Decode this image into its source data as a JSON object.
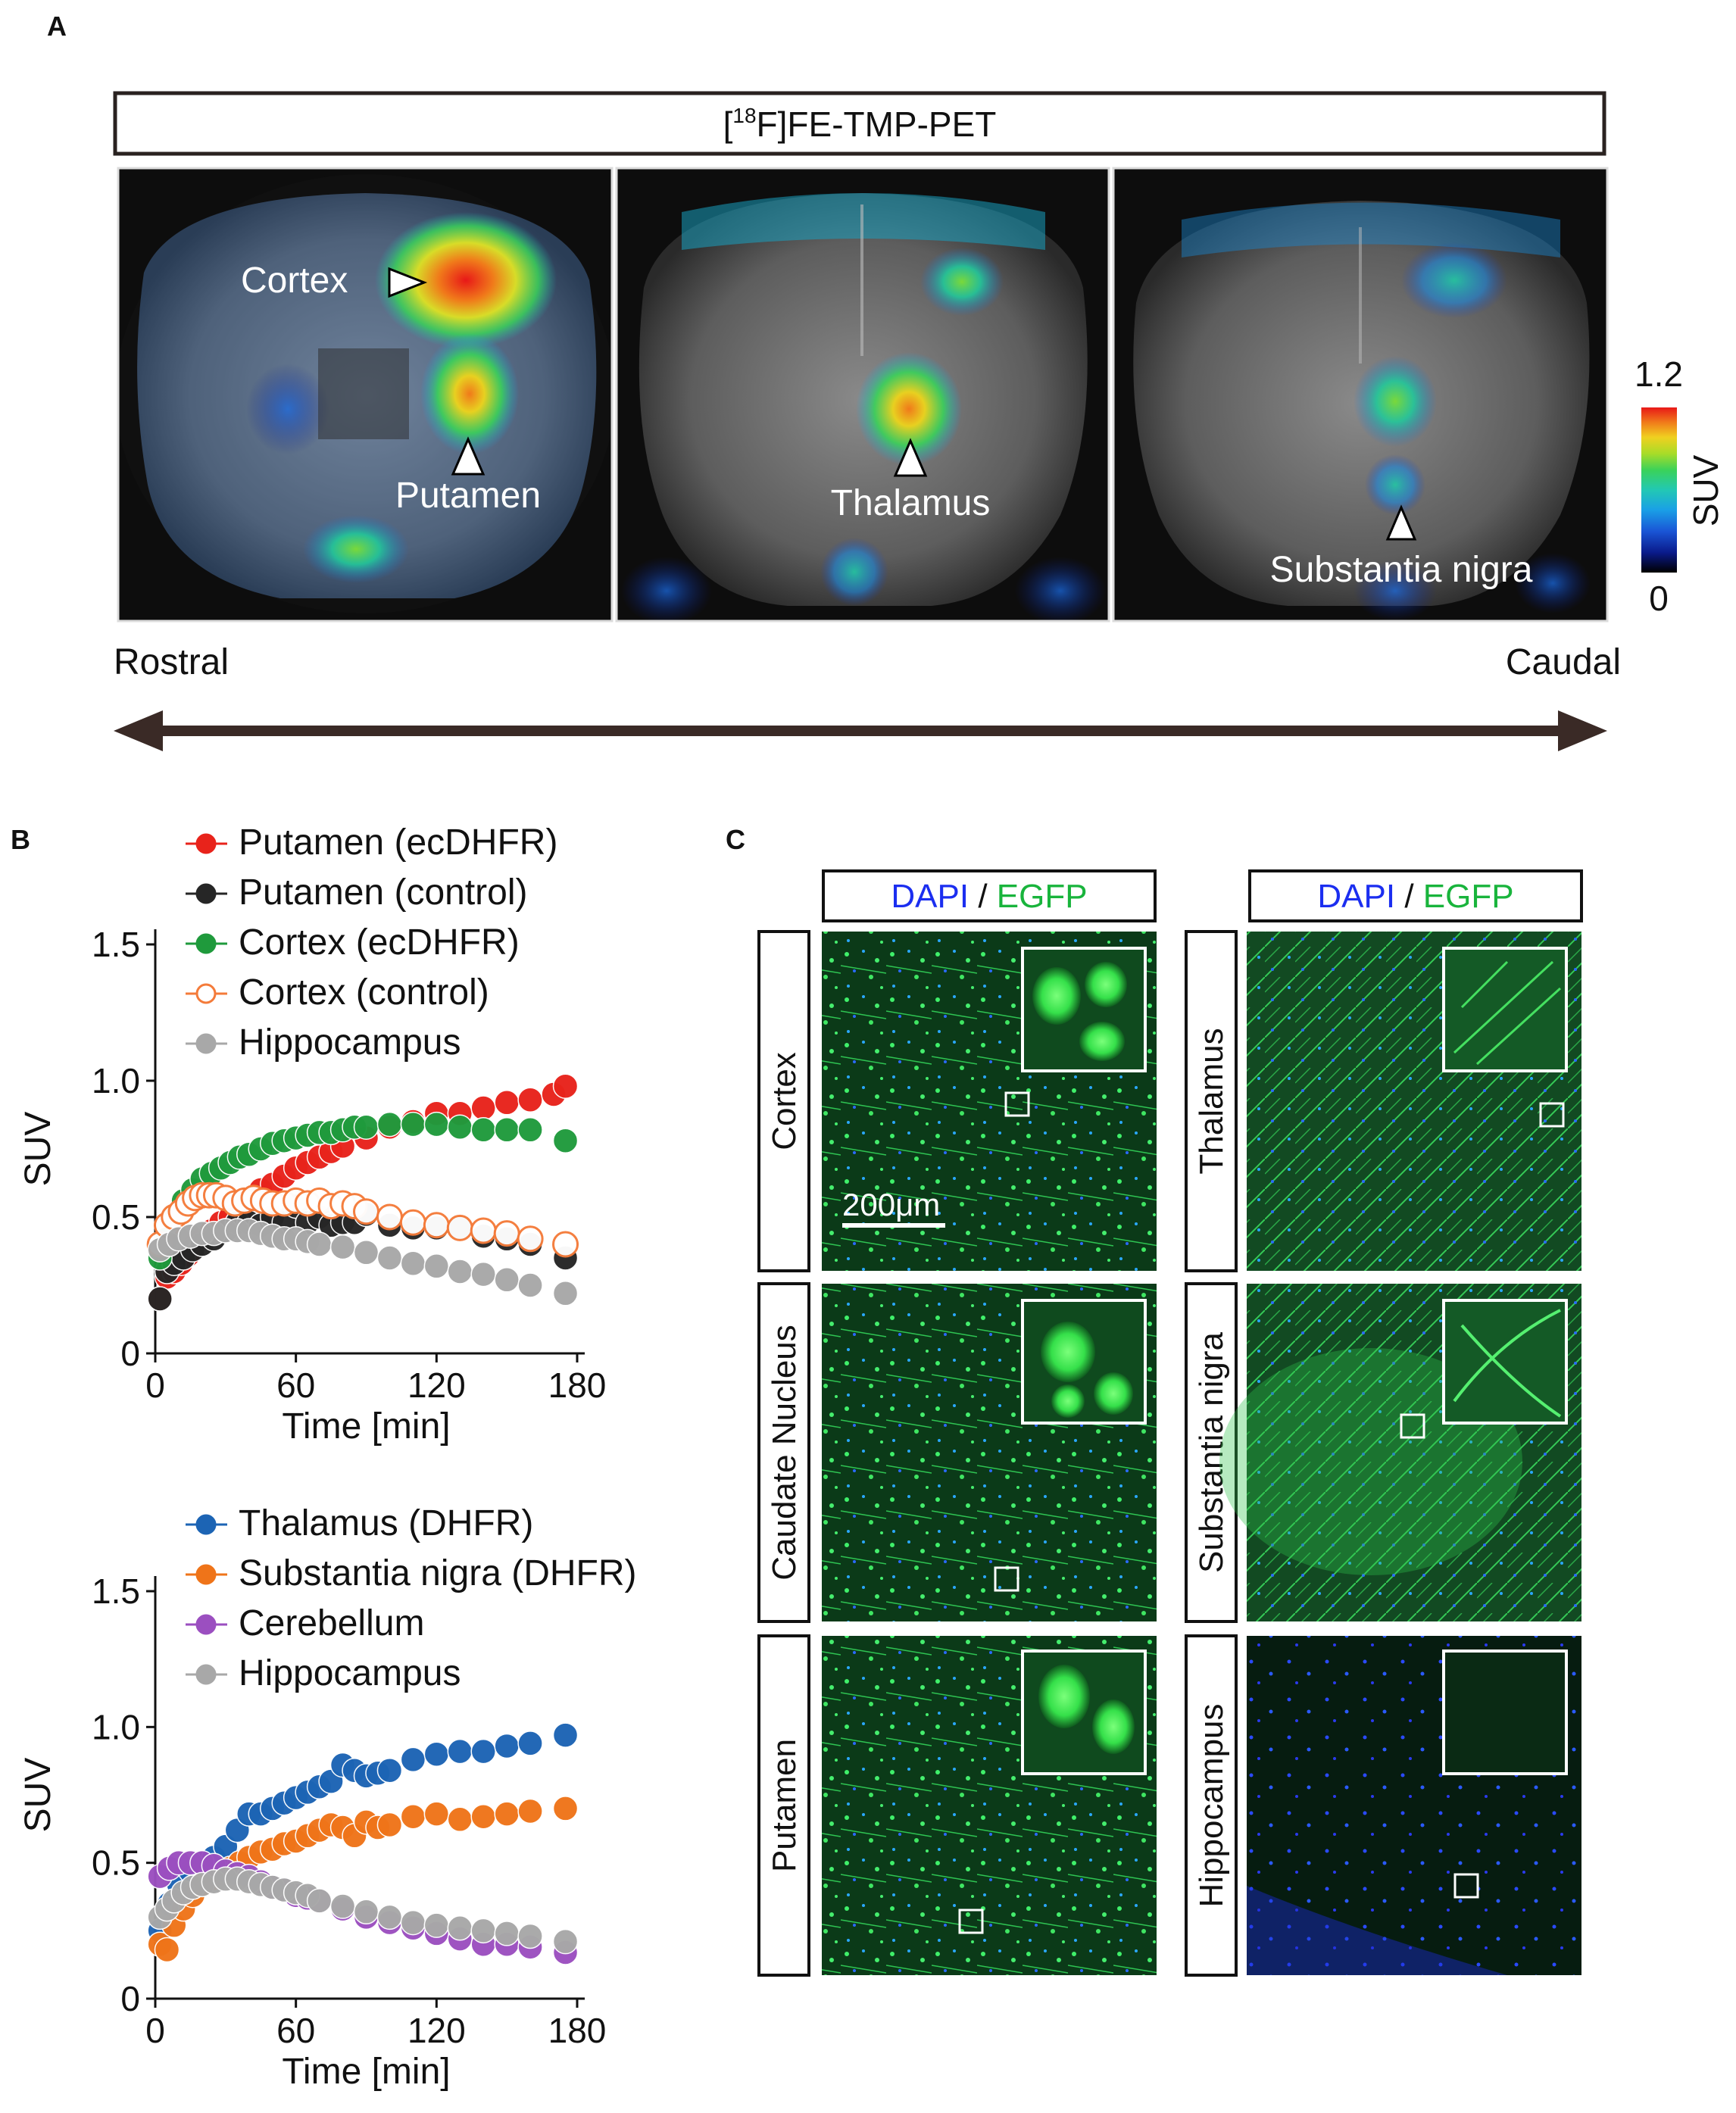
{
  "panelA": {
    "letter": "A",
    "banner_prefix": "[",
    "banner_isotope": "18",
    "banner_suffix": "F]FE-TMP-PET",
    "labels": {
      "cortex": "Cortex",
      "putamen": "Putamen",
      "thalamus": "Thalamus",
      "substantia_nigra": "Substantia nigra"
    },
    "colorbar": {
      "max": "1.2",
      "min": "0",
      "label": "SUV",
      "colors": [
        "#000000",
        "#0a1a8a",
        "#1a55d6",
        "#1aa0e6",
        "#22c8b4",
        "#3ad25a",
        "#a8dc28",
        "#f0d020",
        "#f07a1a",
        "#e81818"
      ]
    },
    "rostral": "Rostral",
    "caudal": "Caudal",
    "colors": {
      "arrow": "#3a2a26",
      "frame": "#1a1a1a"
    }
  },
  "panelB": {
    "letter": "B",
    "charts": [
      "chart_data.0",
      "chart_data.1"
    ]
  },
  "panelC": {
    "letter": "C",
    "header_dapi": "DAPI",
    "header_slash": " / ",
    "header_egfp": "EGFP",
    "left_regions": [
      "Cortex",
      "Caudate Nucleus",
      "Putamen"
    ],
    "right_regions": [
      "Thalamus",
      "Substantia nigra",
      "Hippocampus"
    ],
    "scale_bar": "200μm",
    "colors": {
      "dapi": "#1b2ef0",
      "egfp": "#19b43c"
    }
  },
  "chart_data": [
    {
      "type": "scatter",
      "title": "",
      "xlabel": "Time [min]",
      "ylabel": "SUV",
      "xlim": [
        0,
        180
      ],
      "ylim": [
        0,
        1.5
      ],
      "xticks": [
        "0",
        "60",
        "120",
        "180"
      ],
      "yticks": [
        "0",
        "0.5",
        "1.0",
        "1.5"
      ],
      "legend_position": "top",
      "series": [
        {
          "name": "Putamen (ecDHFR)",
          "color": "#e8231b",
          "fill": "filled",
          "x": [
            2,
            5,
            8,
            11,
            14,
            17,
            20,
            24,
            28,
            32,
            36,
            40,
            45,
            50,
            55,
            60,
            65,
            70,
            75,
            80,
            90,
            100,
            110,
            120,
            130,
            140,
            150,
            160,
            170,
            175
          ],
          "y": [
            0.2,
            0.28,
            0.3,
            0.33,
            0.36,
            0.4,
            0.42,
            0.45,
            0.48,
            0.5,
            0.52,
            0.56,
            0.6,
            0.62,
            0.65,
            0.68,
            0.7,
            0.72,
            0.74,
            0.76,
            0.79,
            0.83,
            0.85,
            0.88,
            0.88,
            0.9,
            0.92,
            0.93,
            0.95,
            0.98
          ]
        },
        {
          "name": "Putamen (control)",
          "color": "#262626",
          "fill": "filled",
          "x": [
            2,
            5,
            8,
            12,
            16,
            20,
            25,
            30,
            35,
            40,
            45,
            50,
            55,
            60,
            65,
            70,
            75,
            80,
            85,
            90,
            100,
            110,
            120,
            130,
            140,
            150,
            160,
            175
          ],
          "y": [
            0.2,
            0.3,
            0.33,
            0.35,
            0.38,
            0.4,
            0.42,
            0.45,
            0.48,
            0.48,
            0.47,
            0.5,
            0.48,
            0.54,
            0.48,
            0.5,
            0.47,
            0.48,
            0.48,
            0.51,
            0.47,
            0.46,
            0.46,
            0.46,
            0.43,
            0.42,
            0.4,
            0.35
          ]
        },
        {
          "name": "Cortex (ecDHFR)",
          "color": "#1f9a3c",
          "fill": "filled",
          "x": [
            2,
            5,
            8,
            12,
            16,
            20,
            24,
            28,
            32,
            36,
            40,
            45,
            50,
            55,
            60,
            65,
            70,
            75,
            80,
            85,
            90,
            100,
            110,
            120,
            130,
            140,
            150,
            160,
            175
          ],
          "y": [
            0.35,
            0.42,
            0.5,
            0.56,
            0.6,
            0.64,
            0.66,
            0.68,
            0.7,
            0.72,
            0.73,
            0.75,
            0.77,
            0.78,
            0.79,
            0.8,
            0.81,
            0.81,
            0.82,
            0.83,
            0.83,
            0.84,
            0.84,
            0.84,
            0.83,
            0.82,
            0.82,
            0.82,
            0.78
          ]
        },
        {
          "name": "Cortex (control)",
          "color": "#f47b3a",
          "fill": "open",
          "x": [
            2,
            5,
            8,
            11,
            14,
            17,
            20,
            23,
            26,
            30,
            34,
            38,
            42,
            46,
            50,
            55,
            60,
            65,
            70,
            75,
            80,
            85,
            90,
            100,
            110,
            120,
            130,
            140,
            150,
            160,
            175
          ],
          "y": [
            0.4,
            0.47,
            0.5,
            0.52,
            0.55,
            0.57,
            0.58,
            0.58,
            0.58,
            0.57,
            0.55,
            0.56,
            0.57,
            0.56,
            0.55,
            0.55,
            0.56,
            0.55,
            0.56,
            0.54,
            0.55,
            0.54,
            0.52,
            0.5,
            0.48,
            0.47,
            0.46,
            0.45,
            0.44,
            0.42,
            0.4
          ]
        },
        {
          "name": "Hippocampus",
          "color": "#a8a8a8",
          "fill": "filled",
          "x": [
            2,
            6,
            10,
            15,
            20,
            25,
            30,
            35,
            40,
            45,
            50,
            55,
            60,
            65,
            70,
            80,
            90,
            100,
            110,
            120,
            130,
            140,
            150,
            160,
            175
          ],
          "y": [
            0.38,
            0.4,
            0.42,
            0.43,
            0.44,
            0.44,
            0.45,
            0.45,
            0.45,
            0.44,
            0.43,
            0.42,
            0.42,
            0.41,
            0.4,
            0.39,
            0.37,
            0.35,
            0.33,
            0.32,
            0.3,
            0.29,
            0.27,
            0.25,
            0.22
          ]
        }
      ]
    },
    {
      "type": "scatter",
      "title": "",
      "xlabel": "Time [min]",
      "ylabel": "SUV",
      "xlim": [
        0,
        180
      ],
      "ylim": [
        0,
        1.5
      ],
      "xticks": [
        "0",
        "60",
        "120",
        "180"
      ],
      "yticks": [
        "0",
        "0.5",
        "1.0",
        "1.5"
      ],
      "legend_position": "top",
      "series": [
        {
          "name": "Thalamus (DHFR)",
          "color": "#1c64b4",
          "fill": "filled",
          "x": [
            2,
            6,
            10,
            15,
            20,
            25,
            30,
            35,
            40,
            45,
            50,
            55,
            60,
            65,
            70,
            75,
            80,
            85,
            90,
            95,
            100,
            110,
            120,
            130,
            140,
            150,
            160,
            175
          ],
          "y": [
            0.25,
            0.35,
            0.42,
            0.47,
            0.5,
            0.52,
            0.56,
            0.62,
            0.68,
            0.68,
            0.7,
            0.72,
            0.74,
            0.76,
            0.78,
            0.8,
            0.86,
            0.84,
            0.82,
            0.83,
            0.84,
            0.88,
            0.9,
            0.91,
            0.91,
            0.93,
            0.94,
            0.97
          ]
        },
        {
          "name": "Substantia nigra (DHFR)",
          "color": "#ef7419",
          "fill": "filled",
          "x": [
            2,
            5,
            8,
            12,
            16,
            20,
            24,
            28,
            32,
            36,
            40,
            45,
            50,
            55,
            60,
            65,
            70,
            75,
            80,
            85,
            90,
            95,
            100,
            110,
            120,
            130,
            140,
            150,
            160,
            175
          ],
          "y": [
            0.2,
            0.18,
            0.27,
            0.33,
            0.38,
            0.42,
            0.44,
            0.46,
            0.48,
            0.5,
            0.52,
            0.54,
            0.55,
            0.57,
            0.58,
            0.6,
            0.62,
            0.64,
            0.63,
            0.6,
            0.65,
            0.63,
            0.64,
            0.67,
            0.68,
            0.66,
            0.67,
            0.68,
            0.69,
            0.7
          ]
        },
        {
          "name": "Cerebellum",
          "color": "#9b4fc0",
          "fill": "filled",
          "x": [
            2,
            6,
            10,
            15,
            20,
            25,
            30,
            35,
            40,
            45,
            50,
            55,
            60,
            65,
            70,
            80,
            90,
            100,
            110,
            120,
            130,
            140,
            150,
            160,
            175
          ],
          "y": [
            0.45,
            0.48,
            0.5,
            0.5,
            0.5,
            0.49,
            0.47,
            0.46,
            0.45,
            0.43,
            0.41,
            0.4,
            0.38,
            0.37,
            0.36,
            0.33,
            0.3,
            0.28,
            0.26,
            0.24,
            0.22,
            0.2,
            0.2,
            0.19,
            0.17
          ]
        },
        {
          "name": "Hippocampus",
          "color": "#a8a8a8",
          "fill": "filled",
          "x": [
            2,
            5,
            8,
            12,
            16,
            20,
            25,
            30,
            35,
            40,
            45,
            50,
            55,
            60,
            65,
            70,
            80,
            90,
            100,
            110,
            120,
            130,
            140,
            150,
            160,
            175
          ],
          "y": [
            0.3,
            0.33,
            0.36,
            0.39,
            0.41,
            0.42,
            0.43,
            0.44,
            0.44,
            0.43,
            0.42,
            0.41,
            0.4,
            0.39,
            0.38,
            0.36,
            0.34,
            0.32,
            0.3,
            0.28,
            0.27,
            0.26,
            0.25,
            0.24,
            0.23,
            0.21
          ]
        }
      ]
    }
  ]
}
